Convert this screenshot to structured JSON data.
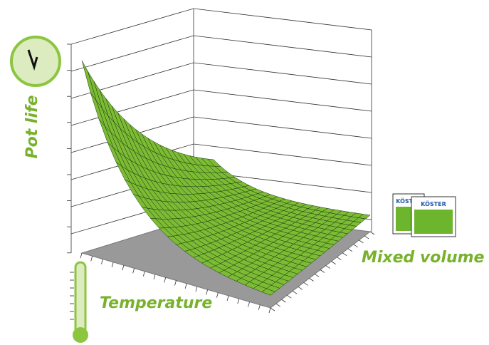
{
  "labels": {
    "vertical_axis": "Pot life",
    "depth_axis": "Mixed volume",
    "horizontal_axis": "Temperature"
  },
  "product": {
    "brand": "KÖSTER"
  }
}
